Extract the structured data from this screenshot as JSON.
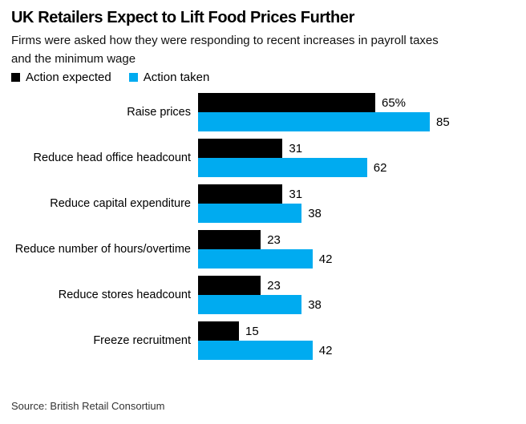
{
  "chart_data": {
    "type": "bar",
    "orientation": "horizontal",
    "title": "UK Retailers Expect to Lift Food Prices Further",
    "subtitle": "Firms were asked how they were responding to recent increases in payroll taxes and the minimum wage",
    "categories": [
      "Raise prices",
      "Reduce head office headcount",
      "Reduce capital expenditure",
      "Reduce number of hours/overtime",
      "Reduce stores headcount",
      "Freeze recruitment"
    ],
    "series": [
      {
        "name": "Action expected",
        "color": "#000000",
        "values": [
          65,
          31,
          31,
          23,
          23,
          15
        ],
        "labels": [
          "65%",
          "31",
          "31",
          "23",
          "23",
          "15"
        ]
      },
      {
        "name": "Action taken",
        "color": "#00abf0",
        "values": [
          85,
          62,
          38,
          42,
          38,
          42
        ],
        "labels": [
          "85",
          "62",
          "38",
          "42",
          "38",
          "42"
        ]
      }
    ],
    "value_unit": "percent",
    "xlim": [
      0,
      100
    ],
    "grid": false,
    "axis_lines": false,
    "legend_position": "top-left",
    "value_labels_position": "outside-end"
  },
  "footer": {
    "source": "Source: British Retail Consortium"
  }
}
